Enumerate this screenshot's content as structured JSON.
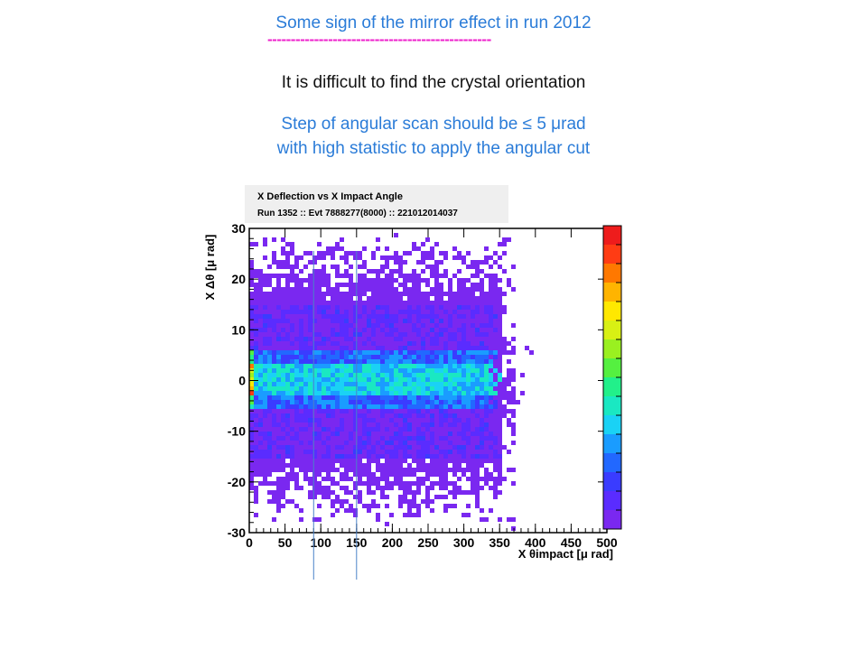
{
  "header": {
    "title": "Some sign of the mirror effect in run 2012",
    "dashes": "------------------------------------------------",
    "statement": "It is difficult to find the crystal orientation",
    "note_line1": "Step of angular scan should be ≤ 5 μrad",
    "note_line2": "with high statistic to apply the angular cut"
  },
  "chart_data": {
    "type": "heatmap",
    "title": "X Deflection vs X Impact Angle",
    "subtitle": "Run 1352 :: Evt 7888277(8000) :: 221012014037",
    "xlabel": "X θimpact [μ rad]",
    "ylabel": "X Δθ [μ rad]",
    "xlim": [
      0,
      500
    ],
    "ylim": [
      -30,
      30
    ],
    "xticks": [
      "0",
      "50",
      "100",
      "150",
      "200",
      "250",
      "300",
      "350",
      "400",
      "450",
      "500"
    ],
    "yticks": [
      "30",
      "20",
      "10",
      "0",
      "-10",
      "-20",
      "-30"
    ],
    "core_band_y": [
      -3,
      3
    ],
    "body_y": [
      -15,
      15
    ],
    "body_edge_x": 355,
    "markers_x": [
      90,
      150
    ],
    "colors": {
      "palette": [
        "#7a28f0",
        "#5a2cff",
        "#3a3cff",
        "#2268ff",
        "#1a9cff",
        "#1ad2f5",
        "#1ae8c2",
        "#22f08a",
        "#55f040",
        "#9af020",
        "#d8f014",
        "#ffe800",
        "#ffb400",
        "#ff7800",
        "#ff3c14",
        "#ee1c1c"
      ],
      "marker_line": "#4a82c8"
    }
  }
}
